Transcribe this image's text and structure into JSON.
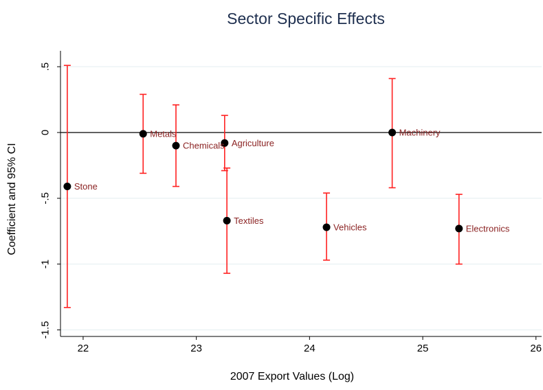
{
  "chart_data": {
    "type": "scatter",
    "title": "Sector Specific Effects",
    "xlabel": "2007 Export Values (Log)",
    "ylabel": "Coefficient and 95% CI",
    "xlim": [
      21.8,
      26.05
    ],
    "ylim": [
      -1.55,
      0.6
    ],
    "xticks": [
      22,
      23,
      24,
      25,
      26
    ],
    "xtick_labels": [
      "22",
      "23",
      "24",
      "25",
      "26"
    ],
    "yticks": [
      0.5,
      0,
      -0.5,
      -1,
      -1.5
    ],
    "ytick_labels": [
      ".5",
      "0",
      "-.5",
      "-1",
      "-1.5"
    ],
    "reference_line_y": 0,
    "grid": true,
    "colors": {
      "point": "#000000",
      "ci": "#ff2020",
      "label": "#8b2323",
      "title": "#1e2f4f",
      "grid": "#e3eef0"
    },
    "points": [
      {
        "label": "Stone",
        "x": 21.86,
        "y": -0.41,
        "ci_low": -1.33,
        "ci_high": 0.51
      },
      {
        "label": "Metals",
        "x": 22.53,
        "y": -0.01,
        "ci_low": -0.31,
        "ci_high": 0.29
      },
      {
        "label": "Chemicals",
        "x": 22.82,
        "y": -0.1,
        "ci_low": -0.41,
        "ci_high": 0.21
      },
      {
        "label": "Agriculture",
        "x": 23.25,
        "y": -0.08,
        "ci_low": -0.29,
        "ci_high": 0.13
      },
      {
        "label": "Textiles",
        "x": 23.27,
        "y": -0.67,
        "ci_low": -1.07,
        "ci_high": -0.27
      },
      {
        "label": "Vehicles",
        "x": 24.15,
        "y": -0.72,
        "ci_low": -0.97,
        "ci_high": -0.46
      },
      {
        "label": "Machinery",
        "x": 24.73,
        "y": 0.0,
        "ci_low": -0.42,
        "ci_high": 0.41
      },
      {
        "label": "Electronics",
        "x": 25.32,
        "y": -0.73,
        "ci_low": -1.0,
        "ci_high": -0.47
      }
    ]
  }
}
